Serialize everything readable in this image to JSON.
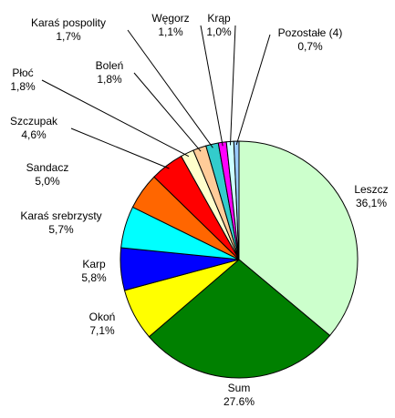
{
  "chart_data": {
    "type": "pie",
    "categories": [
      "Leszcz",
      "Sum",
      "Okoń",
      "Karp",
      "Karaś srebrzysty",
      "Sandacz",
      "Szczupak",
      "Płoć",
      "Boleń",
      "Karaś pospolity",
      "Węgorz",
      "Krąp",
      "Pozostałe (4)"
    ],
    "values": [
      36.1,
      27.6,
      7.1,
      5.8,
      5.7,
      5.0,
      4.6,
      1.8,
      1.8,
      1.7,
      1.1,
      1.0,
      0.7
    ],
    "value_labels": [
      "36,1%",
      "27.6%",
      "7,1%",
      "5,8%",
      "5,7%",
      "5,0%",
      "4,6%",
      "1,8%",
      "1,8%",
      "1,7%",
      "1,1%",
      "1,0%",
      "0,7%"
    ],
    "colors": [
      "#ccffcc",
      "#008000",
      "#ffff00",
      "#0000ff",
      "#00ffff",
      "#ff6600",
      "#ff0000",
      "#ffffcc",
      "#ffcc99",
      "#33cccc",
      "#ff00ff",
      "#ccffff",
      "#99ccff"
    ]
  }
}
